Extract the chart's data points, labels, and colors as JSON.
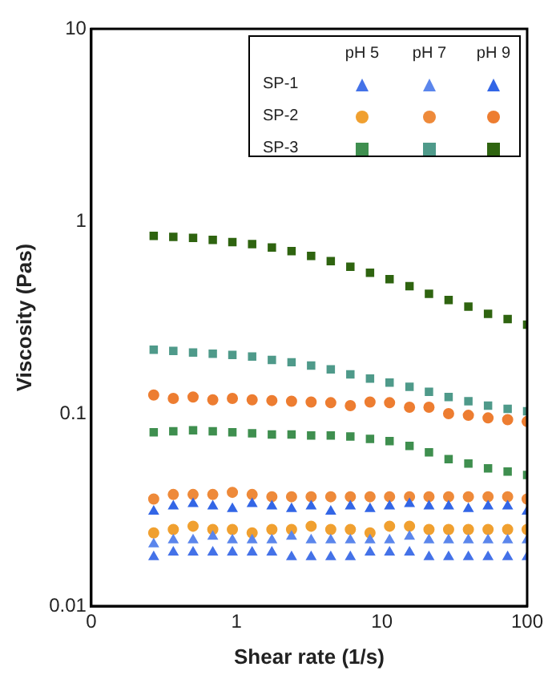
{
  "chart_data": {
    "type": "scatter",
    "xlabel": "Shear rate (1/s)",
    "ylabel": "Viscosity (Pas)",
    "log": "xy",
    "grid": false,
    "xlim": [
      0.1,
      100
    ],
    "xticks": [
      {
        "value": 0.1,
        "label": "0"
      },
      1,
      10,
      100
    ],
    "ylim": [
      0.01,
      10
    ],
    "yticks": [
      0.01,
      0.1,
      1,
      10
    ],
    "annotations": [
      "pH 5",
      "pH 7",
      "pH 9",
      "SP-1",
      "SP-2",
      "SP-3"
    ],
    "x": [
      0.269,
      0.367,
      0.502,
      0.686,
      0.936,
      1.28,
      1.75,
      2.39,
      3.26,
      4.45,
      6.07,
      8.29,
      11.3,
      15.5,
      21.1,
      28.8,
      39.4,
      53.8,
      73.4,
      100
    ],
    "series": [
      {
        "color": "#4472e8",
        "marker": "triangle",
        "values": [
          0.018,
          0.019,
          0.019,
          0.019,
          0.019,
          0.019,
          0.019,
          0.018,
          0.018,
          0.018,
          0.018,
          0.019,
          0.019,
          0.019,
          0.018,
          0.018,
          0.018,
          0.018,
          0.018,
          0.018
        ]
      },
      {
        "color": "#5b86ec",
        "marker": "triangle",
        "values": [
          0.021,
          0.022,
          0.022,
          0.023,
          0.022,
          0.022,
          0.022,
          0.023,
          0.022,
          0.022,
          0.022,
          0.022,
          0.022,
          0.023,
          0.022,
          0.022,
          0.022,
          0.022,
          0.022,
          0.022
        ]
      },
      {
        "color": "#3366e6",
        "marker": "triangle",
        "values": [
          0.031,
          0.033,
          0.034,
          0.033,
          0.032,
          0.034,
          0.033,
          0.032,
          0.033,
          0.031,
          0.033,
          0.032,
          0.033,
          0.034,
          0.033,
          0.033,
          0.032,
          0.033,
          0.033,
          0.031
        ]
      },
      {
        "color": "#f0a030",
        "marker": "circle",
        "values": [
          0.024,
          0.025,
          0.026,
          0.025,
          0.025,
          0.024,
          0.025,
          0.025,
          0.026,
          0.025,
          0.025,
          0.024,
          0.026,
          0.026,
          0.025,
          0.025,
          0.025,
          0.025,
          0.025,
          0.025
        ]
      },
      {
        "color": "#ee8a3a",
        "marker": "circle",
        "values": [
          0.036,
          0.038,
          0.038,
          0.038,
          0.039,
          0.038,
          0.037,
          0.037,
          0.037,
          0.037,
          0.037,
          0.037,
          0.037,
          0.037,
          0.037,
          0.037,
          0.037,
          0.037,
          0.037,
          0.036
        ]
      },
      {
        "color": "#ed7d31",
        "marker": "circle",
        "values": [
          0.125,
          0.12,
          0.122,
          0.118,
          0.12,
          0.118,
          0.117,
          0.116,
          0.115,
          0.114,
          0.11,
          0.115,
          0.114,
          0.108,
          0.108,
          0.1,
          0.098,
          0.095,
          0.093,
          0.091
        ]
      },
      {
        "color": "#3f8f4f",
        "marker": "square",
        "values": [
          0.08,
          0.081,
          0.082,
          0.081,
          0.08,
          0.079,
          0.078,
          0.078,
          0.077,
          0.077,
          0.076,
          0.074,
          0.072,
          0.068,
          0.063,
          0.058,
          0.055,
          0.052,
          0.05,
          0.048
        ]
      },
      {
        "color": "#4f9a8a",
        "marker": "square",
        "values": [
          0.215,
          0.212,
          0.208,
          0.205,
          0.202,
          0.198,
          0.19,
          0.185,
          0.178,
          0.17,
          0.16,
          0.152,
          0.145,
          0.138,
          0.13,
          0.122,
          0.116,
          0.11,
          0.106,
          0.103
        ]
      },
      {
        "color": "#2f6410",
        "marker": "square",
        "values": [
          0.84,
          0.83,
          0.82,
          0.8,
          0.78,
          0.76,
          0.73,
          0.7,
          0.66,
          0.62,
          0.58,
          0.54,
          0.5,
          0.46,
          0.42,
          0.39,
          0.36,
          0.33,
          0.31,
          0.29
        ]
      }
    ]
  }
}
